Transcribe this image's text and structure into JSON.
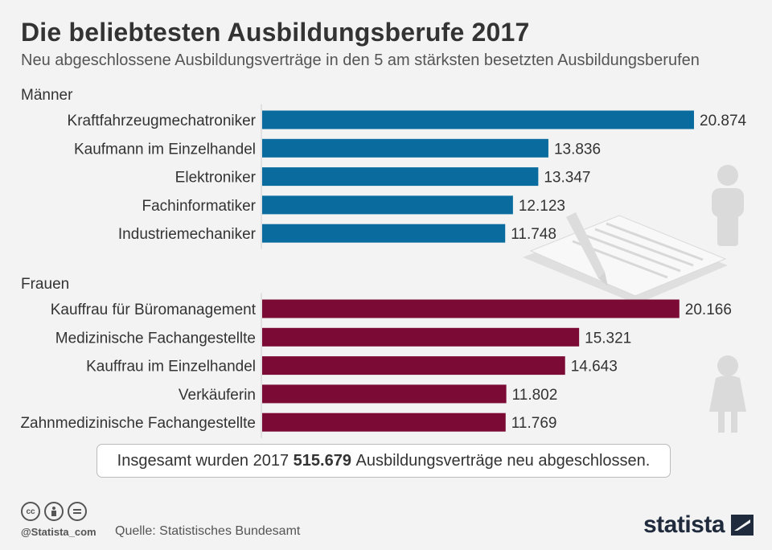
{
  "header": {
    "title": "Die beliebtesten Ausbildungsberufe 2017",
    "subtitle": "Neu abgeschlossene Ausbildungsverträge in den 5 am stärksten besetzten Ausbildungsberufen"
  },
  "chart_data": [
    {
      "type": "bar",
      "orientation": "horizontal",
      "group_label": "Männer",
      "color": "#0a6c9e",
      "categories": [
        "Kraftfahrzeugmechatroniker",
        "Kaufmann im Einzelhandel",
        "Elektroniker",
        "Fachinformatiker",
        "Industriemechaniker"
      ],
      "values": [
        20874,
        13836,
        13347,
        12123,
        11748
      ],
      "value_labels": [
        "20.874",
        "13.836",
        "13.347",
        "12.123",
        "11.748"
      ]
    },
    {
      "type": "bar",
      "orientation": "horizontal",
      "group_label": "Frauen",
      "color": "#7b0a35",
      "categories": [
        "Kauffrau für Büromanagement",
        "Medizinische Fachangestellte",
        "Kauffrau im Einzelhandel",
        "Verkäuferin",
        "Zahnmedizinische Fachangestellte"
      ],
      "values": [
        20166,
        15321,
        14643,
        11802,
        11769
      ],
      "value_labels": [
        "20.166",
        "15.321",
        "14.643",
        "11.802",
        "11.769"
      ]
    }
  ],
  "summary": {
    "prefix": "Insgesamt wurden 2017",
    "total": "515.679",
    "suffix": "Ausbildungsverträge neu abgeschlossen."
  },
  "footer": {
    "handle": "@Statista_com",
    "source": "Quelle: Statistisches Bundesamt",
    "logo_text": "statista",
    "icons": [
      "cc-icon",
      "person-icon",
      "equals-icon"
    ]
  },
  "icons": {
    "male": "male-figure-icon",
    "female": "female-figure-icon",
    "contract": "contract-pen-icon"
  }
}
